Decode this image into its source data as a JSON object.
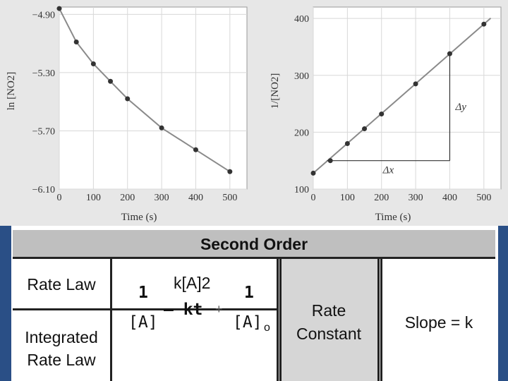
{
  "chart_data": [
    {
      "type": "line",
      "xlabel": "Time (s)",
      "ylabel": "ln [NO2]",
      "xlim": [
        0,
        550
      ],
      "ylim": [
        -6.1,
        -4.85
      ],
      "x_ticks": [
        "0",
        "100",
        "200",
        "300",
        "400",
        "500"
      ],
      "y_ticks": [
        "−4.90",
        "−5.30",
        "−5.70",
        "−6.10"
      ],
      "x_tick_values": [
        0,
        100,
        200,
        300,
        400,
        500
      ],
      "y_tick_values": [
        -4.9,
        -5.3,
        -5.7,
        -6.1
      ],
      "grid": true,
      "points": [
        [
          0,
          -4.86
        ],
        [
          50,
          -5.09
        ],
        [
          100,
          -5.24
        ],
        [
          150,
          -5.36
        ],
        [
          200,
          -5.48
        ],
        [
          300,
          -5.68
        ],
        [
          400,
          -5.83
        ],
        [
          500,
          -5.98
        ]
      ]
    },
    {
      "type": "line",
      "xlabel": "Time (s)",
      "ylabel": "1/[NO2]",
      "xlim": [
        0,
        550
      ],
      "ylim": [
        100,
        420
      ],
      "x_ticks": [
        "0",
        "100",
        "200",
        "300",
        "400",
        "500"
      ],
      "y_ticks": [
        "100",
        "200",
        "300",
        "400"
      ],
      "x_tick_values": [
        0,
        100,
        200,
        300,
        400,
        500
      ],
      "y_tick_values": [
        100,
        200,
        300,
        400
      ],
      "grid": true,
      "points": [
        [
          0,
          128
        ],
        [
          50,
          150
        ],
        [
          100,
          180
        ],
        [
          150,
          206
        ],
        [
          200,
          232
        ],
        [
          300,
          285
        ],
        [
          400,
          338
        ],
        [
          500,
          390
        ]
      ],
      "annotations": [
        "Δy",
        "Δx"
      ]
    }
  ],
  "table": {
    "header": "Second Order",
    "row1_label": "Rate Law",
    "row2_label_line1": "Integrated",
    "row2_label_line2": "Rate Law",
    "rate_law": "k[A]2",
    "eq_one_a": "1",
    "eq_a": "[A]",
    "eq_minus": "— kt",
    "eq_plus": "+",
    "eq_one_b": "1",
    "eq_a0": "[A]",
    "eq_sub0": "o",
    "rate_constant_line1": "Rate",
    "rate_constant_line2": "Constant",
    "slope": "Slope = k"
  }
}
